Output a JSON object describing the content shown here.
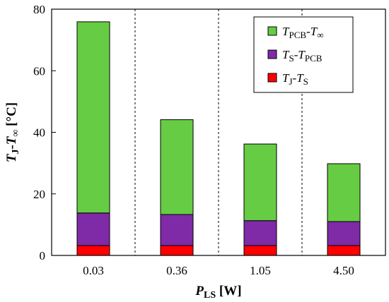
{
  "chart_data": {
    "type": "bar",
    "stacked": true,
    "categories": [
      "0.03",
      "0.36",
      "1.05",
      "4.50"
    ],
    "series": [
      {
        "name": "T_J-T_S",
        "legend": {
          "a": "T",
          "a_sub": "J",
          "b": "T",
          "b_sub": "S"
        },
        "color": "#ff0000",
        "values": [
          3.2,
          3.2,
          3.2,
          3.2
        ]
      },
      {
        "name": "T_S-T_PCB",
        "legend": {
          "a": "T",
          "a_sub": "S",
          "b": "T",
          "b_sub": "PCB"
        },
        "color": "#7f2aa7",
        "values": [
          10.6,
          10.1,
          8.1,
          7.8
        ]
      },
      {
        "name": "T_PCB-T_∞",
        "legend": {
          "a": "T",
          "a_sub": "PCB",
          "b": "T",
          "b_sub": "∞"
        },
        "color": "#66cc44",
        "values": [
          62.1,
          30.8,
          24.9,
          18.8
        ]
      }
    ],
    "legend_order": [
      2,
      1,
      0
    ],
    "legend_position": "top-right",
    "xlabel": {
      "main": "P",
      "sub": "LS",
      "unit": "[W]"
    },
    "ylabel": {
      "a": "T",
      "a_sub": "J",
      "b": "T",
      "b_sub": "∞",
      "unit": "[°C]"
    },
    "ylim": [
      0,
      80
    ],
    "yticks": [
      0,
      20,
      40,
      60,
      80
    ],
    "grid": {
      "x": true,
      "y": false,
      "style": "dashed"
    }
  }
}
